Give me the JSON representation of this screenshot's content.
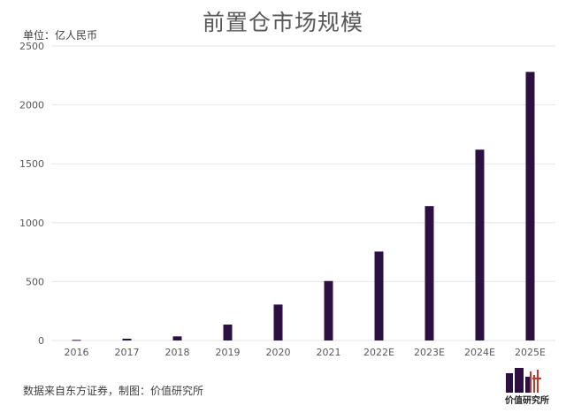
{
  "chart_data": {
    "type": "bar",
    "title": "前置仓市场规模",
    "unit_label": "单位：亿人民币",
    "categories": [
      "2016",
      "2017",
      "2018",
      "2019",
      "2020",
      "2021",
      "2022E",
      "2023E",
      "2024E",
      "2025E"
    ],
    "series": [
      {
        "values": [
          5,
          15,
          35,
          135,
          305,
          505,
          755,
          1140,
          1620,
          2280
        ]
      }
    ],
    "ylim": [
      0,
      2500
    ],
    "yticks": [
      0,
      500,
      1000,
      1500,
      2000,
      2500
    ],
    "grid": true,
    "bar_color": "#2d1042",
    "source": "数据来自东方证券，制图：价值研究所"
  },
  "logo": {
    "text": "价值研究所",
    "colors": [
      "#2d1042",
      "#c0392b"
    ]
  }
}
